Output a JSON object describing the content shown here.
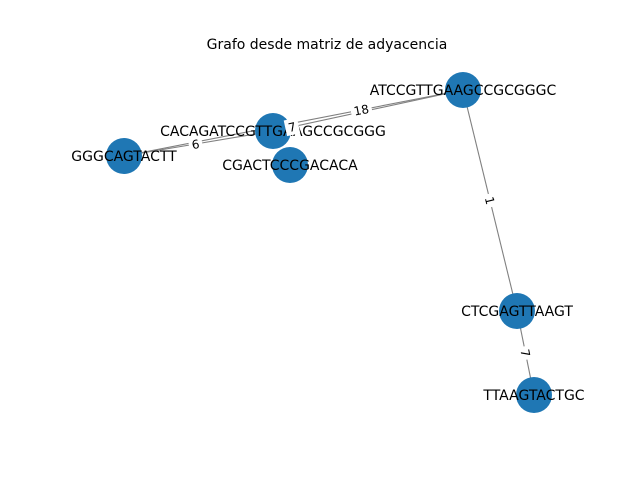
{
  "title": "Grafo desde matriz de adyacencia",
  "colors": {
    "node": "#1f77b4",
    "edge": "#808080",
    "background": "#ffffff"
  },
  "nodes": [
    {
      "id": "n1",
      "label": "GGGCAGTACTT"
    },
    {
      "id": "n2",
      "label": "CACAGATCCGTTGAAGCCGCGGG"
    },
    {
      "id": "n3",
      "label": "CGACTCCCGACACA"
    },
    {
      "id": "n4",
      "label": "ATCCGTTGAAGCCGCGGGC"
    },
    {
      "id": "n5",
      "label": "CTCGAGTTAAGT"
    },
    {
      "id": "n6",
      "label": "TTAAGTACTGC"
    }
  ],
  "edges": [
    {
      "source": "n1",
      "target": "n2",
      "weight": "6"
    },
    {
      "source": "n2",
      "target": "n4",
      "weight": "7"
    },
    {
      "source": "n1",
      "target": "n4",
      "weight": "18"
    },
    {
      "source": "n4",
      "target": "n5",
      "weight": "1"
    },
    {
      "source": "n5",
      "target": "n6",
      "weight": "7"
    }
  ]
}
